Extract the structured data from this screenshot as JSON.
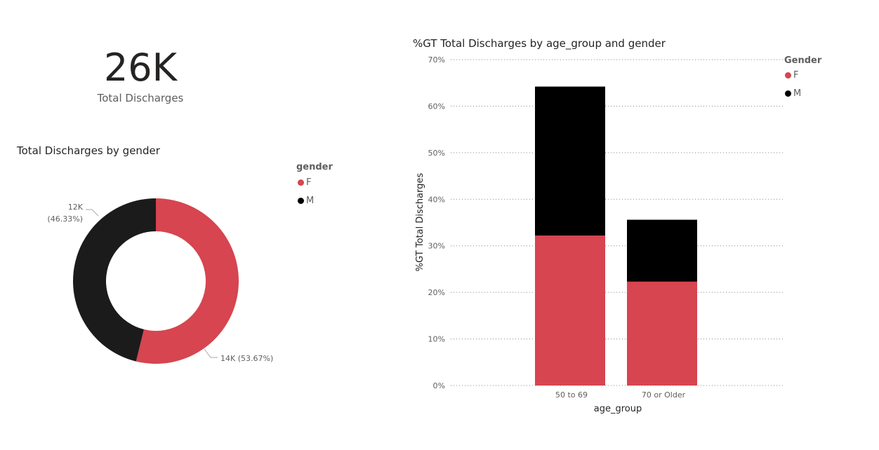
{
  "kpi": {
    "value": "26K",
    "label": "Total Discharges"
  },
  "colors": {
    "F": "#d64550",
    "M": "#000000",
    "M_donut": "#1b1b1b"
  },
  "donut": {
    "title": "Total Discharges by gender",
    "legend_title": "gender",
    "legend": [
      "F",
      "M"
    ],
    "labels": {
      "M_value": "12K",
      "M_pct": "(46.33%)",
      "F_text": "14K (53.67%)"
    }
  },
  "bar": {
    "title": "%GT Total Discharges by age_group and gender",
    "legend_title": "Gender",
    "legend": [
      "F",
      "M"
    ],
    "xlabel": "age_group",
    "ylabel": "%GT Total Discharges",
    "yticks": [
      "0%",
      "10%",
      "20%",
      "30%",
      "40%",
      "50%",
      "60%",
      "70%"
    ]
  },
  "chart_data": [
    {
      "type": "pie",
      "title": "Total Discharges by gender",
      "categories": [
        "F",
        "M"
      ],
      "values": [
        14000,
        12000
      ],
      "percentages": [
        53.67,
        46.33
      ],
      "data_labels": [
        "14K (53.67%)",
        "12K (46.33%)"
      ],
      "legend_title": "gender"
    },
    {
      "type": "bar",
      "stacked": true,
      "title": "%GT Total Discharges by age_group and gender",
      "categories": [
        "50 to 69",
        "70 or Older"
      ],
      "series": [
        {
          "name": "F",
          "values": [
            32.2,
            22.3
          ]
        },
        {
          "name": "M",
          "values": [
            32.0,
            13.3
          ]
        }
      ],
      "xlabel": "age_group",
      "ylabel": "%GT Total Discharges",
      "ylim": [
        0,
        70
      ],
      "grid": true,
      "legend_position": "top-right",
      "legend_title": "Gender"
    }
  ]
}
